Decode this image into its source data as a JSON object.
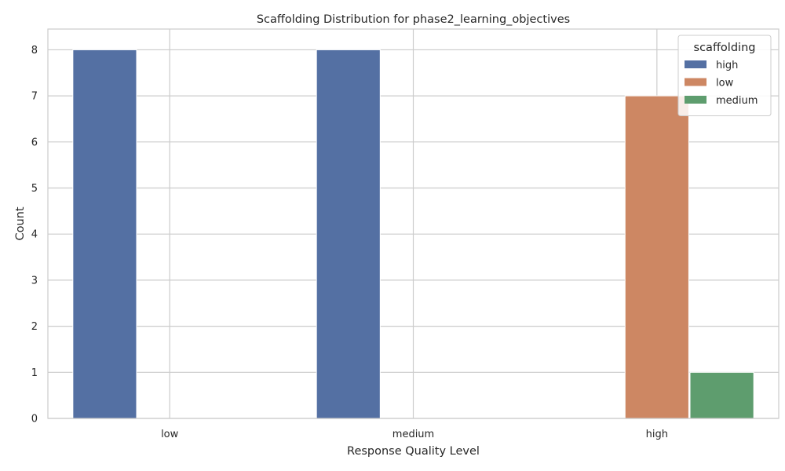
{
  "chart_data": {
    "type": "bar",
    "title": "Scaffolding Distribution for phase2_learning_objectives",
    "xlabel": "Response Quality Level",
    "ylabel": "Count",
    "categories": [
      "low",
      "medium",
      "high"
    ],
    "ylim": [
      0,
      8.45
    ],
    "yticks": [
      0,
      1,
      2,
      3,
      4,
      5,
      6,
      7,
      8
    ],
    "grid": true,
    "legend": {
      "title": "scaffolding",
      "placement": "top-right"
    },
    "series": [
      {
        "name": "high",
        "color": "#5470a3",
        "values": [
          8,
          8,
          null
        ]
      },
      {
        "name": "low",
        "color": "#cd8763",
        "values": [
          null,
          null,
          7
        ]
      },
      {
        "name": "medium",
        "color": "#5e9d6e",
        "values": [
          null,
          null,
          1
        ]
      }
    ]
  }
}
